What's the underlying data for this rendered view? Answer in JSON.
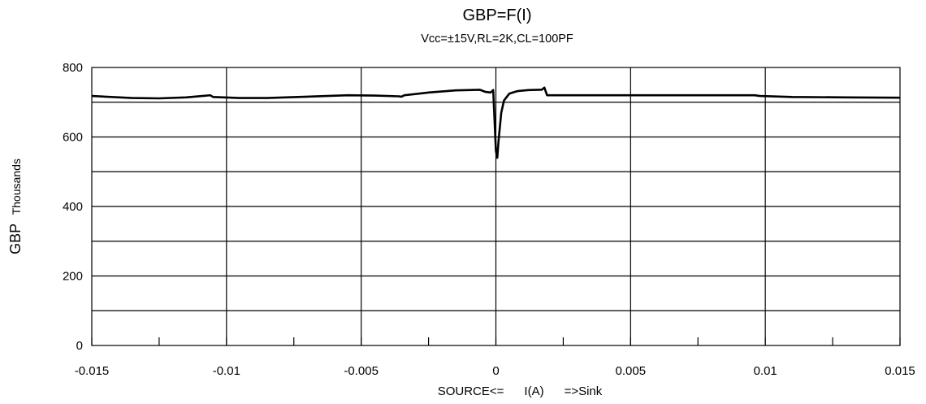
{
  "chart_data": {
    "type": "line",
    "title": "GBP=F(I)",
    "subtitle": "Vcc=±15V,RL=2K,CL=100PF",
    "xlabel": "SOURCE<=      I(A)      =>Sink",
    "ylabel": "GBP",
    "ylabel_unit": "Thousands",
    "xlim": [
      -0.015,
      0.015
    ],
    "ylim": [
      0,
      800
    ],
    "x_ticks": [
      -0.015,
      -0.01,
      -0.005,
      0,
      0.005,
      0.01,
      0.015
    ],
    "x_tick_labels": [
      "-0.015",
      "-0.01",
      "-0.005",
      "0",
      "0.005",
      "0.01",
      "0.015"
    ],
    "y_ticks": [
      0,
      200,
      400,
      600,
      800
    ],
    "y_tick_labels": [
      "0",
      "200",
      "400",
      "600",
      "800"
    ],
    "y_gridlines": [
      100,
      200,
      300,
      400,
      500,
      600,
      700
    ],
    "x_gridlines": [
      -0.01,
      -0.005,
      0,
      0.005,
      0.01
    ],
    "grid": true,
    "series": [
      {
        "x": [
          -0.015,
          -0.0135,
          -0.0125,
          -0.0115,
          -0.0106,
          -0.0105,
          -0.0095,
          -0.0085,
          -0.007,
          -0.0055,
          -0.0045,
          -0.0036,
          -0.0035,
          -0.0034,
          -0.0025,
          -0.0015,
          -0.0006,
          -0.0004,
          -0.0002,
          -0.0001,
          0.0,
          5e-05,
          0.0001,
          0.0002,
          0.0003,
          0.0005,
          0.0008,
          0.0012,
          0.0016,
          0.0017,
          0.0018,
          0.0019,
          0.003,
          0.006,
          0.009,
          0.0096,
          0.0098,
          0.011,
          0.013,
          0.015
        ],
        "y": [
          718,
          712,
          711,
          714,
          720,
          715,
          712,
          712,
          716,
          720,
          719,
          717,
          716,
          720,
          728,
          734,
          736,
          730,
          728,
          735,
          560,
          540,
          590,
          670,
          705,
          725,
          732,
          735,
          736,
          736,
          742,
          720,
          720,
          720,
          720,
          720,
          718,
          715,
          714,
          713
        ]
      }
    ]
  }
}
